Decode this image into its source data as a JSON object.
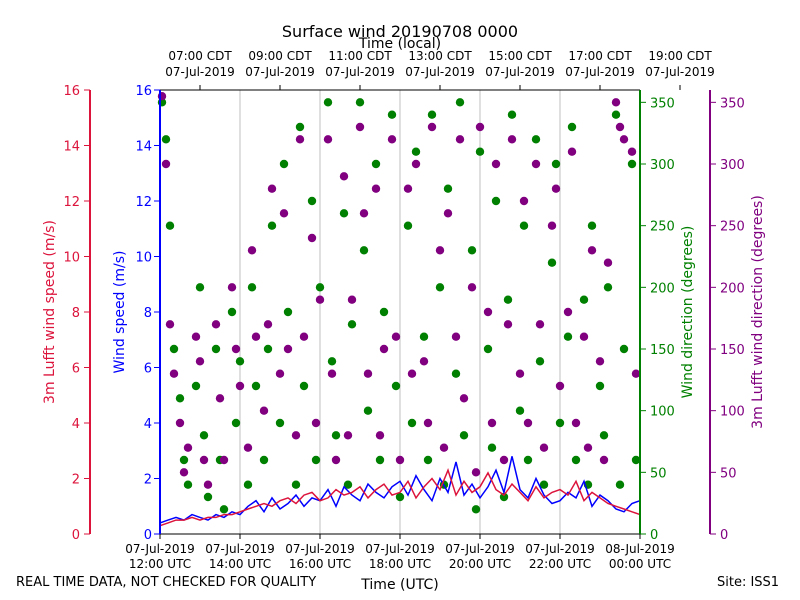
{
  "chart_data": {
    "type": "scatter",
    "title": "Surface wind 20190708 0000",
    "xlabel_bottom": "Time (UTC)",
    "xlabel_top": "Time (local)",
    "x_range": [
      "2019-07-07T12:00Z",
      "2019-07-08T00:00Z"
    ],
    "bottom_ticks": [
      {
        "line1": "07-Jul-2019",
        "line2": "12:00 UTC"
      },
      {
        "line1": "07-Jul-2019",
        "line2": "14:00 UTC"
      },
      {
        "line1": "07-Jul-2019",
        "line2": "16:00 UTC"
      },
      {
        "line1": "07-Jul-2019",
        "line2": "18:00 UTC"
      },
      {
        "line1": "07-Jul-2019",
        "line2": "20:00 UTC"
      },
      {
        "line1": "07-Jul-2019",
        "line2": "22:00 UTC"
      },
      {
        "line1": "08-Jul-2019",
        "line2": "00:00 UTC"
      }
    ],
    "top_ticks": [
      {
        "line1": "07:00 CDT",
        "line2": "07-Jul-2019"
      },
      {
        "line1": "09:00 CDT",
        "line2": "07-Jul-2019"
      },
      {
        "line1": "11:00 CDT",
        "line2": "07-Jul-2019"
      },
      {
        "line1": "13:00 CDT",
        "line2": "07-Jul-2019"
      },
      {
        "line1": "15:00 CDT",
        "line2": "07-Jul-2019"
      },
      {
        "line1": "17:00 CDT",
        "line2": "07-Jul-2019"
      },
      {
        "line1": "19:00 CDT",
        "line2": "07-Jul-2019"
      }
    ],
    "axes": {
      "lufft_speed": {
        "label": "3m Lufft wind speed (m/s)",
        "range": [
          0,
          16
        ],
        "ticks": [
          "0",
          "2",
          "4",
          "6",
          "8",
          "10",
          "12",
          "14",
          "16"
        ],
        "color": "#dc143c"
      },
      "speed": {
        "label": "Wind speed (m/s)",
        "range": [
          0,
          16
        ],
        "ticks": [
          "0",
          "2",
          "4",
          "6",
          "8",
          "10",
          "12",
          "14",
          "16"
        ],
        "color": "#0000ff"
      },
      "direction": {
        "label": "Wind direction (degrees)",
        "range": [
          0,
          360
        ],
        "ticks": [
          "0",
          "50",
          "100",
          "150",
          "200",
          "250",
          "300",
          "350"
        ],
        "color": "#008000"
      },
      "lufft_direction": {
        "label": "3m Lufft wind direction (degrees)",
        "range": [
          0,
          360
        ],
        "ticks": [
          "0",
          "50",
          "100",
          "150",
          "200",
          "250",
          "300",
          "350"
        ],
        "color": "#800080"
      }
    },
    "grid": "vertical",
    "speed_series": {
      "hours": [
        0,
        0.2,
        0.4,
        0.6,
        0.8,
        1.0,
        1.2,
        1.4,
        1.6,
        1.8,
        2.0,
        2.2,
        2.4,
        2.6,
        2.8,
        3.0,
        3.2,
        3.4,
        3.6,
        3.8,
        4.0,
        4.2,
        4.4,
        4.6,
        4.8,
        5.0,
        5.2,
        5.4,
        5.6,
        5.8,
        6.0,
        6.2,
        6.4,
        6.6,
        6.8,
        7.0,
        7.2,
        7.4,
        7.6,
        7.8,
        8.0,
        8.2,
        8.4,
        8.6,
        8.8,
        9.0,
        9.2,
        9.4,
        9.6,
        9.8,
        10.0,
        10.2,
        10.4,
        10.6,
        10.8,
        11.0,
        11.2,
        11.4,
        11.6,
        11.8,
        12.0
      ],
      "wind_speed": [
        0.4,
        0.5,
        0.6,
        0.5,
        0.7,
        0.6,
        0.5,
        0.7,
        0.6,
        0.8,
        0.7,
        1.0,
        1.2,
        0.8,
        1.3,
        0.9,
        1.1,
        1.4,
        1.0,
        1.3,
        1.2,
        1.6,
        1.0,
        1.7,
        1.4,
        1.2,
        1.8,
        1.5,
        1.3,
        1.7,
        1.9,
        1.4,
        2.1,
        1.6,
        1.2,
        2.0,
        1.5,
        2.6,
        1.4,
        1.8,
        1.3,
        1.7,
        2.3,
        1.5,
        2.8,
        1.6,
        1.3,
        2.0,
        1.4,
        1.1,
        1.2,
        1.5,
        1.3,
        1.9,
        1.0,
        1.4,
        1.2,
        0.9,
        0.8,
        1.1,
        1.2
      ],
      "lufft_speed": [
        0.3,
        0.4,
        0.5,
        0.5,
        0.6,
        0.5,
        0.6,
        0.6,
        0.7,
        0.7,
        0.8,
        0.9,
        1.0,
        1.1,
        1.0,
        1.2,
        1.3,
        1.1,
        1.4,
        1.5,
        1.2,
        1.3,
        1.6,
        1.4,
        1.5,
        1.7,
        1.3,
        1.6,
        1.8,
        1.4,
        1.5,
        1.9,
        1.3,
        1.7,
        2.0,
        1.6,
        2.3,
        1.4,
        1.9,
        1.5,
        1.7,
        2.2,
        1.6,
        1.4,
        1.8,
        1.5,
        1.2,
        1.7,
        1.3,
        1.5,
        1.6,
        1.4,
        1.9,
        1.2,
        1.5,
        1.3,
        1.1,
        1.0,
        0.9,
        0.8,
        0.7
      ]
    },
    "direction_series": {
      "hours": [
        0.05,
        0.15,
        0.25,
        0.35,
        0.5,
        0.6,
        0.7,
        0.9,
        1.0,
        1.1,
        1.2,
        1.4,
        1.5,
        1.6,
        1.8,
        1.9,
        2.0,
        2.2,
        2.3,
        2.4,
        2.6,
        2.7,
        2.8,
        3.0,
        3.1,
        3.2,
        3.4,
        3.5,
        3.6,
        3.8,
        3.9,
        4.0,
        4.2,
        4.3,
        4.4,
        4.6,
        4.7,
        4.8,
        5.0,
        5.1,
        5.2,
        5.4,
        5.5,
        5.6,
        5.8,
        5.9,
        6.0,
        6.2,
        6.3,
        6.4,
        6.6,
        6.7,
        6.8,
        7.0,
        7.1,
        7.2,
        7.4,
        7.5,
        7.6,
        7.8,
        7.9,
        8.0,
        8.2,
        8.3,
        8.4,
        8.6,
        8.7,
        8.8,
        9.0,
        9.1,
        9.2,
        9.4,
        9.5,
        9.6,
        9.8,
        9.9,
        10.0,
        10.2,
        10.3,
        10.4,
        10.6,
        10.7,
        10.8,
        11.0,
        11.1,
        11.2,
        11.4,
        11.5,
        11.6,
        11.8,
        11.9
      ],
      "wind_direction": [
        350,
        320,
        250,
        150,
        110,
        60,
        40,
        120,
        200,
        80,
        30,
        150,
        60,
        20,
        180,
        90,
        140,
        40,
        200,
        120,
        60,
        150,
        250,
        90,
        300,
        180,
        40,
        330,
        120,
        270,
        60,
        200,
        350,
        140,
        80,
        260,
        40,
        170,
        350,
        230,
        100,
        300,
        60,
        180,
        340,
        120,
        30,
        250,
        90,
        310,
        160,
        60,
        340,
        200,
        40,
        280,
        130,
        350,
        80,
        230,
        20,
        310,
        150,
        70,
        270,
        30,
        190,
        340,
        100,
        250,
        60,
        320,
        140,
        40,
        220,
        300,
        90,
        160,
        330,
        60,
        190,
        40,
        250,
        120,
        80,
        200,
        340,
        40,
        150,
        300,
        60
      ],
      "lufft_direction": [
        355,
        300,
        170,
        130,
        90,
        50,
        70,
        160,
        140,
        60,
        40,
        170,
        110,
        60,
        200,
        150,
        120,
        70,
        230,
        160,
        100,
        170,
        280,
        130,
        260,
        150,
        80,
        320,
        160,
        240,
        90,
        190,
        320,
        130,
        60,
        290,
        80,
        190,
        330,
        260,
        130,
        280,
        80,
        150,
        320,
        160,
        60,
        280,
        130,
        300,
        140,
        90,
        330,
        230,
        70,
        260,
        160,
        320,
        110,
        200,
        50,
        330,
        180,
        90,
        300,
        60,
        170,
        320,
        130,
        270,
        90,
        300,
        170,
        70,
        250,
        280,
        120,
        180,
        310,
        90,
        160,
        70,
        230,
        140,
        60,
        220,
        350,
        330,
        320,
        310,
        130
      ]
    }
  },
  "footer": {
    "left": "REAL TIME DATA, NOT CHECKED FOR QUALITY",
    "center": "Time (UTC)",
    "right": "Site: ISS1"
  }
}
